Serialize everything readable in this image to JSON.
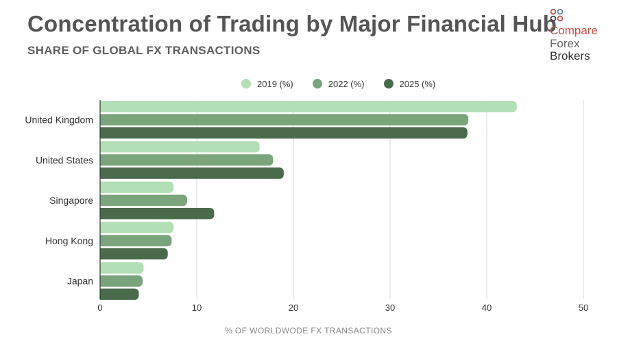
{
  "header": {
    "title": "Concentration of Trading by Major Financial Hub",
    "subtitle": "SHARE OF GLOBAL FX TRANSACTIONS"
  },
  "logo": {
    "words": [
      "Compare",
      "Forex",
      "Brokers"
    ],
    "dot_colors": [
      "#c0504d",
      "#5b7fa6",
      "#444444",
      "#c0504d"
    ]
  },
  "chart_data": {
    "type": "bar",
    "orientation": "horizontal",
    "categories": [
      "United Kingdom",
      "United States",
      "Singapore",
      "Hong Kong",
      "Japan"
    ],
    "series": [
      {
        "name": "2019 (%)",
        "color": "#b2dfb4",
        "values": [
          43.1,
          16.5,
          7.6,
          7.6,
          4.5
        ]
      },
      {
        "name": "2022 (%)",
        "color": "#7aa57c",
        "values": [
          38.1,
          17.9,
          9.0,
          7.4,
          4.4
        ]
      },
      {
        "name": "2025 (%)",
        "color": "#4a6b4b",
        "values": [
          38.0,
          19.0,
          11.8,
          7.0,
          4.0
        ]
      }
    ],
    "xlabel": "% OF WORLDWODE FX TRANSACTIONS",
    "ylabel": "",
    "xlim": [
      0,
      50
    ],
    "xticks": [
      0,
      10,
      20,
      30,
      40,
      50
    ],
    "grid": "vertical",
    "legend": "top-center"
  }
}
